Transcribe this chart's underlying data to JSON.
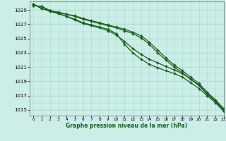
{
  "title": "Graphe pression niveau de la mer (hPa)",
  "background_color": "#cceee8",
  "grid_color": "#aaddcc",
  "line_color": "#1a5e1a",
  "xlim": [
    -0.5,
    23
  ],
  "ylim": [
    1014.2,
    1030.2
  ],
  "yticks": [
    1015,
    1017,
    1019,
    1021,
    1023,
    1025,
    1027,
    1029
  ],
  "xticks": [
    0,
    1,
    2,
    3,
    4,
    5,
    6,
    7,
    8,
    9,
    10,
    11,
    12,
    13,
    14,
    15,
    16,
    17,
    18,
    19,
    20,
    21,
    22,
    23
  ],
  "series": [
    [
      1029.6,
      1029.5,
      1028.9,
      1028.6,
      1028.4,
      1028.1,
      1027.7,
      1027.4,
      1027.1,
      1026.8,
      1026.5,
      1026.1,
      1025.7,
      1025.1,
      1024.2,
      1023.0,
      1022.0,
      1021.0,
      1020.2,
      1019.3,
      1018.4,
      1017.2,
      1016.2,
      1015.0
    ],
    [
      1029.6,
      1029.5,
      1028.9,
      1028.7,
      1028.4,
      1028.2,
      1027.8,
      1027.5,
      1027.2,
      1026.9,
      1026.6,
      1026.3,
      1025.9,
      1025.4,
      1024.5,
      1023.4,
      1022.3,
      1021.3,
      1020.5,
      1019.6,
      1018.7,
      1017.5,
      1016.4,
      1015.2
    ],
    [
      1029.8,
      1029.2,
      1028.9,
      1028.5,
      1028.1,
      1027.7,
      1027.2,
      1026.9,
      1026.6,
      1026.3,
      1025.7,
      1024.2,
      1023.0,
      1022.1,
      1021.4,
      1020.9,
      1020.5,
      1020.1,
      1019.6,
      1018.8,
      1018.0,
      1017.0,
      1016.0,
      1014.8
    ],
    [
      1029.8,
      1029.2,
      1028.8,
      1028.5,
      1028.1,
      1027.6,
      1027.1,
      1026.8,
      1026.5,
      1026.1,
      1025.5,
      1024.6,
      1023.6,
      1022.8,
      1022.1,
      1021.6,
      1021.1,
      1020.6,
      1020.1,
      1019.3,
      1018.5,
      1017.3,
      1016.2,
      1014.9
    ]
  ]
}
